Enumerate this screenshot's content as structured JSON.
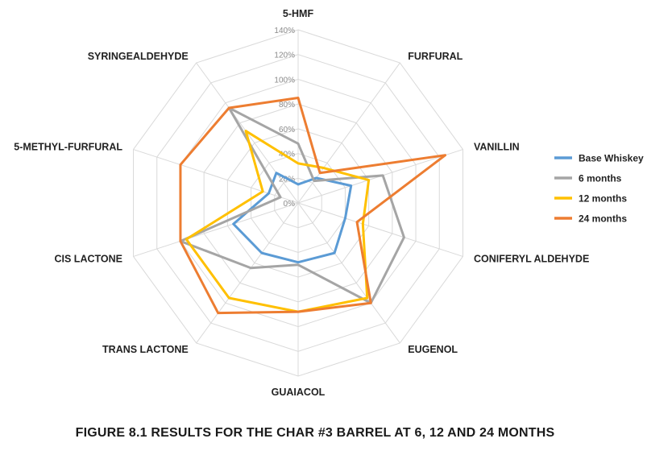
{
  "chart_data": {
    "type": "radar",
    "caption": "FIGURE 8.1  RESULTS FOR THE CHAR #3 BARREL AT 6, 12 AND 24 MONTHS",
    "categories": [
      "5-HMF",
      "FURFURAL",
      "VANILLIN",
      "CONIFERYL ALDEHYDE",
      "EUGENOL",
      "GUAIACOL",
      "TRANS LACTONE",
      "CIS LACTONE",
      "5-METHYL-FURFURAL",
      "SYRINGEALDEHYDE"
    ],
    "range": [
      0,
      140
    ],
    "ticks": [
      0,
      20,
      40,
      60,
      80,
      100,
      120,
      140
    ],
    "tick_labels": [
      "0%",
      "20%",
      "40%",
      "60%",
      "80%",
      "100%",
      "120%",
      "140%"
    ],
    "grid": true,
    "legend_position": "right",
    "series": [
      {
        "name": "Base Whiskey",
        "color": "#5b9bd5",
        "values": [
          15,
          25,
          45,
          40,
          50,
          48,
          50,
          55,
          25,
          30
        ]
      },
      {
        "name": "6 months",
        "color": "#a5a5a5",
        "values": [
          48,
          22,
          72,
          90,
          100,
          50,
          65,
          100,
          15,
          95
        ]
      },
      {
        "name": "12 months",
        "color": "#ffc000",
        "values": [
          32,
          35,
          60,
          55,
          95,
          88,
          95,
          95,
          30,
          72
        ]
      },
      {
        "name": "24 months",
        "color": "#ed7d31",
        "values": [
          85,
          30,
          125,
          50,
          100,
          88,
          110,
          100,
          100,
          95
        ]
      }
    ]
  }
}
